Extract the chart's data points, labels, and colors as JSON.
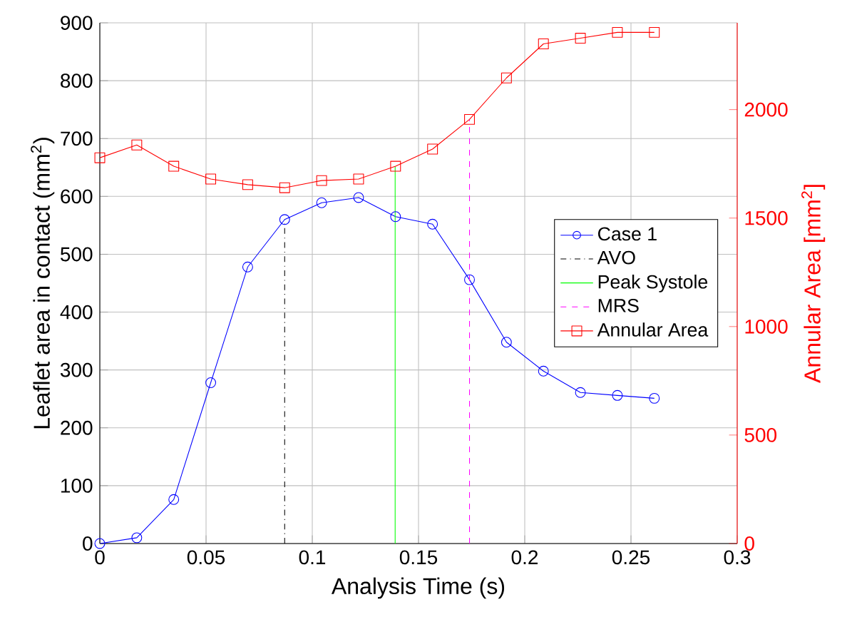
{
  "chart_data": {
    "type": "line",
    "xlabel": "Analysis Time (s)",
    "ylabel": "Leaflet area in contact (mm$^{2}$)",
    "y2label": "Annular Area [mm$^{2}$]",
    "x": [
      0,
      0.0174,
      0.0348,
      0.0522,
      0.0696,
      0.087,
      0.1044,
      0.1218,
      0.1392,
      0.1566,
      0.174,
      0.1914,
      0.2088,
      0.2262,
      0.2436,
      0.261
    ],
    "series": [
      {
        "name": "Case 1",
        "color": "#0000ff",
        "marker": "circle",
        "values": [
          0,
          10,
          76,
          278,
          478,
          560,
          589,
          598,
          565,
          552,
          456,
          348,
          298,
          261,
          256,
          251
        ]
      },
      {
        "name": "AVO",
        "color": "#000000",
        "line_style": "dashdot",
        "x": [
          0.087,
          0.087
        ],
        "values": [
          0,
          560
        ]
      },
      {
        "name": "Peak Systole",
        "color": "#00ff00",
        "line_style": "solid",
        "x": [
          0.139,
          0.139
        ],
        "values": [
          0,
          652
        ]
      },
      {
        "name": "MRS",
        "color": "#ff00ff",
        "line_style": "dashed",
        "x": [
          0.174,
          0.174
        ],
        "values": [
          0,
          733
        ]
      },
      {
        "name": "Annular Area",
        "color": "#ff0000",
        "marker": "square",
        "axis": "y2",
        "values": [
          1778,
          1837,
          1739,
          1680,
          1654,
          1640,
          1673,
          1680,
          1739,
          1818,
          1955,
          2146,
          2303,
          2329,
          2356,
          2356
        ]
      }
    ],
    "xlim": [
      0,
      0.3
    ],
    "xticks": [
      0,
      0.05,
      0.1,
      0.15,
      0.2,
      0.25,
      0.3
    ],
    "ylim": [
      0,
      900
    ],
    "yticks": [
      0,
      100,
      200,
      300,
      400,
      500,
      600,
      700,
      800,
      900
    ],
    "y2lim": [
      0,
      2400
    ],
    "y2ticks": [
      0,
      500,
      1000,
      1500,
      2000
    ],
    "grid": true,
    "legend": "right"
  }
}
